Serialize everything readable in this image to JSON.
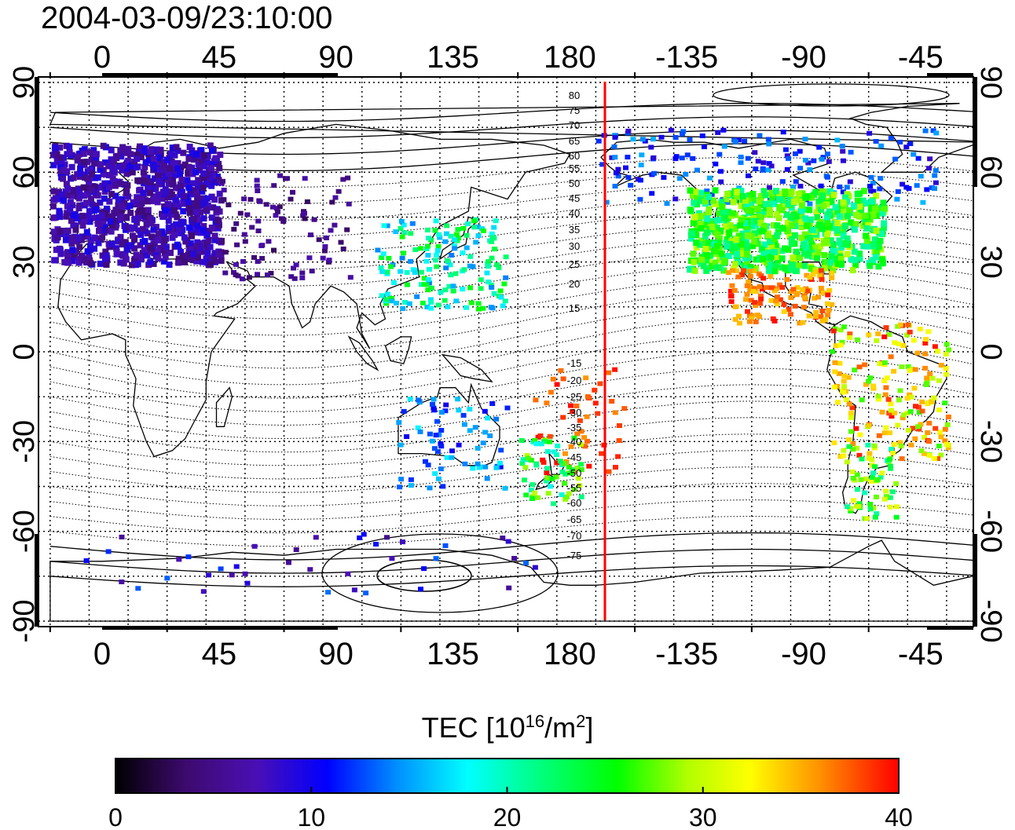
{
  "timestamp": "2004-03-09/23:10:00",
  "map": {
    "lon_tick_labels": [
      "0",
      "45",
      "90",
      "135",
      "180",
      "-135",
      "-90",
      "-45"
    ],
    "lat_tick_labels": [
      "90",
      "60",
      "30",
      "0",
      "-30",
      "-60",
      "-90"
    ],
    "contour_labels_north": [
      "80",
      "75",
      "70",
      "65",
      "60",
      "55",
      "50",
      "45",
      "40",
      "35",
      "30",
      "25",
      "20",
      "15"
    ],
    "contour_labels_south": [
      "-15",
      "-20",
      "-25",
      "-30",
      "-35",
      "-40",
      "-45",
      "-50",
      "-55",
      "-60",
      "-65",
      "-70",
      "-75"
    ],
    "terminator_line_color": "#ff0000",
    "grid": true
  },
  "colorbar": {
    "title_prefix": "TEC  [10",
    "title_exp": "16",
    "title_mid": "/m",
    "title_exp2": "2",
    "title_suffix": "]",
    "tick_labels": [
      "0",
      "10",
      "20",
      "30",
      "40"
    ],
    "min": 0,
    "max": 40,
    "colormap": [
      "#000000",
      "#3d0a6e",
      "#4a0fb4",
      "#0000ff",
      "#0090ff",
      "#00ffff",
      "#00ff80",
      "#00ff00",
      "#b0ff00",
      "#ffff00",
      "#ff9000",
      "#ff0000"
    ]
  }
}
